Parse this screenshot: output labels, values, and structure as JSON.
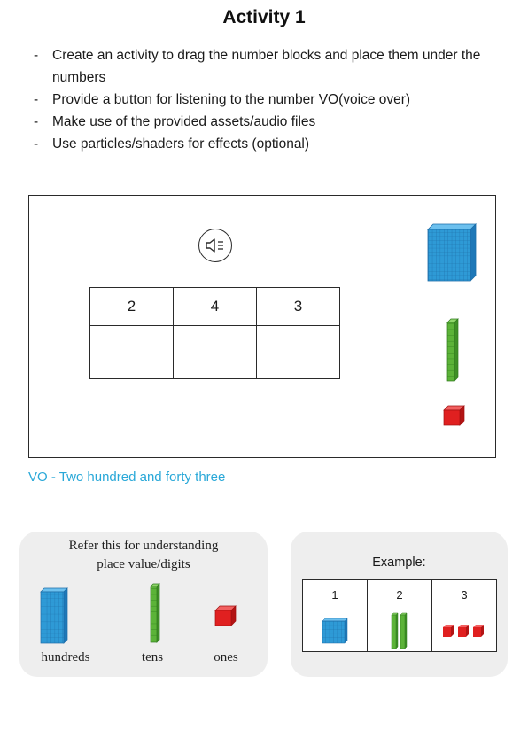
{
  "header": {
    "title": "Activity 1"
  },
  "instructions": [
    "Create an activity to drag the number blocks and place them under the numbers",
    "Provide a button for listening to the number VO(voice over)",
    "Make use of the provided assets/audio files",
    "Use particles/shaders for effects (optional)"
  ],
  "activity": {
    "audio_button_icon": "speaker-icon",
    "numbers": [
      "2",
      "4",
      "3"
    ],
    "draggable_blocks": [
      "hundreds-block",
      "tens-rod",
      "ones-cube"
    ]
  },
  "vo_text": "VO - Two hundred and forty three",
  "reference": {
    "heading_line1": "Refer this for understanding",
    "heading_line2": "place value/digits",
    "labels": {
      "hundreds": "hundreds",
      "tens": "tens",
      "ones": "ones"
    }
  },
  "example": {
    "title": "Example:",
    "digits": [
      "1",
      "2",
      "3"
    ],
    "blocks": {
      "hundreds": 1,
      "tens": 2,
      "ones": 3
    }
  },
  "colors": {
    "vo_text": "#29a8d8",
    "hundreds_block": "#2e9ad6",
    "tens_rod": "#5cb338",
    "ones_cube": "#e02020",
    "card_background": "#eeeeee"
  }
}
